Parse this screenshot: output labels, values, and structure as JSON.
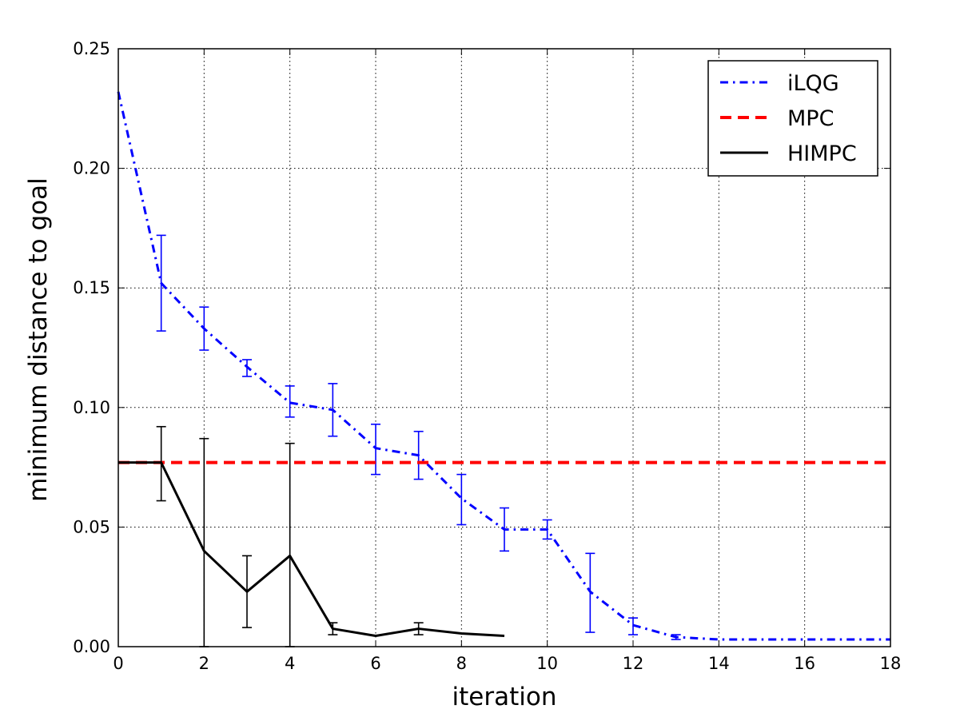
{
  "chart_data": {
    "type": "line",
    "title": "",
    "xlabel": "iteration",
    "ylabel": "minimum distance to goal",
    "xlim": [
      0,
      18
    ],
    "ylim": [
      0.0,
      0.25
    ],
    "xticks": [
      0,
      2,
      4,
      6,
      8,
      10,
      12,
      14,
      16,
      18
    ],
    "xtick_labels": [
      "0",
      "2",
      "4",
      "6",
      "8",
      "10",
      "12",
      "14",
      "16",
      "18"
    ],
    "yticks": [
      0.0,
      0.05,
      0.1,
      0.15,
      0.2,
      0.25
    ],
    "ytick_labels": [
      "0.00",
      "0.05",
      "0.10",
      "0.15",
      "0.20",
      "0.25"
    ],
    "grid": true,
    "legend_position": "top-right",
    "series": [
      {
        "name": "iLQG",
        "color": "#0000ff",
        "style": "dashdot",
        "x": [
          0,
          1,
          2,
          3,
          4,
          5,
          6,
          7,
          8,
          9,
          10,
          11,
          12,
          13,
          14,
          15,
          16,
          17,
          18
        ],
        "y": [
          0.232,
          0.152,
          0.133,
          0.117,
          0.102,
          0.099,
          0.083,
          0.08,
          0.062,
          0.049,
          0.049,
          0.023,
          0.009,
          0.004,
          0.003,
          0.003,
          0.003,
          0.003,
          0.003
        ],
        "err_low": [
          null,
          0.132,
          0.124,
          0.113,
          0.096,
          0.088,
          0.072,
          0.07,
          0.051,
          0.04,
          0.045,
          0.006,
          0.005,
          0.003,
          null,
          null,
          null,
          null,
          null
        ],
        "err_high": [
          null,
          0.172,
          0.142,
          0.12,
          0.109,
          0.11,
          0.093,
          0.09,
          0.072,
          0.058,
          0.053,
          0.039,
          0.012,
          0.005,
          null,
          null,
          null,
          null,
          null
        ]
      },
      {
        "name": "MPC",
        "color": "#ff0000",
        "style": "dashed",
        "x": [
          0,
          18
        ],
        "y": [
          0.077,
          0.077
        ]
      },
      {
        "name": "HIMPC",
        "color": "#000000",
        "style": "solid",
        "x": [
          0,
          1,
          2,
          3,
          4,
          5,
          6,
          7,
          8,
          9
        ],
        "y": [
          0.077,
          0.077,
          0.04,
          0.023,
          0.038,
          0.0075,
          0.0045,
          0.0075,
          0.0055,
          0.0045
        ],
        "err_low": [
          null,
          0.061,
          0.0,
          0.008,
          0.0,
          0.005,
          null,
          0.005,
          null,
          null
        ],
        "err_high": [
          null,
          0.092,
          0.087,
          0.038,
          0.085,
          0.01,
          null,
          0.01,
          null,
          null
        ]
      }
    ]
  }
}
